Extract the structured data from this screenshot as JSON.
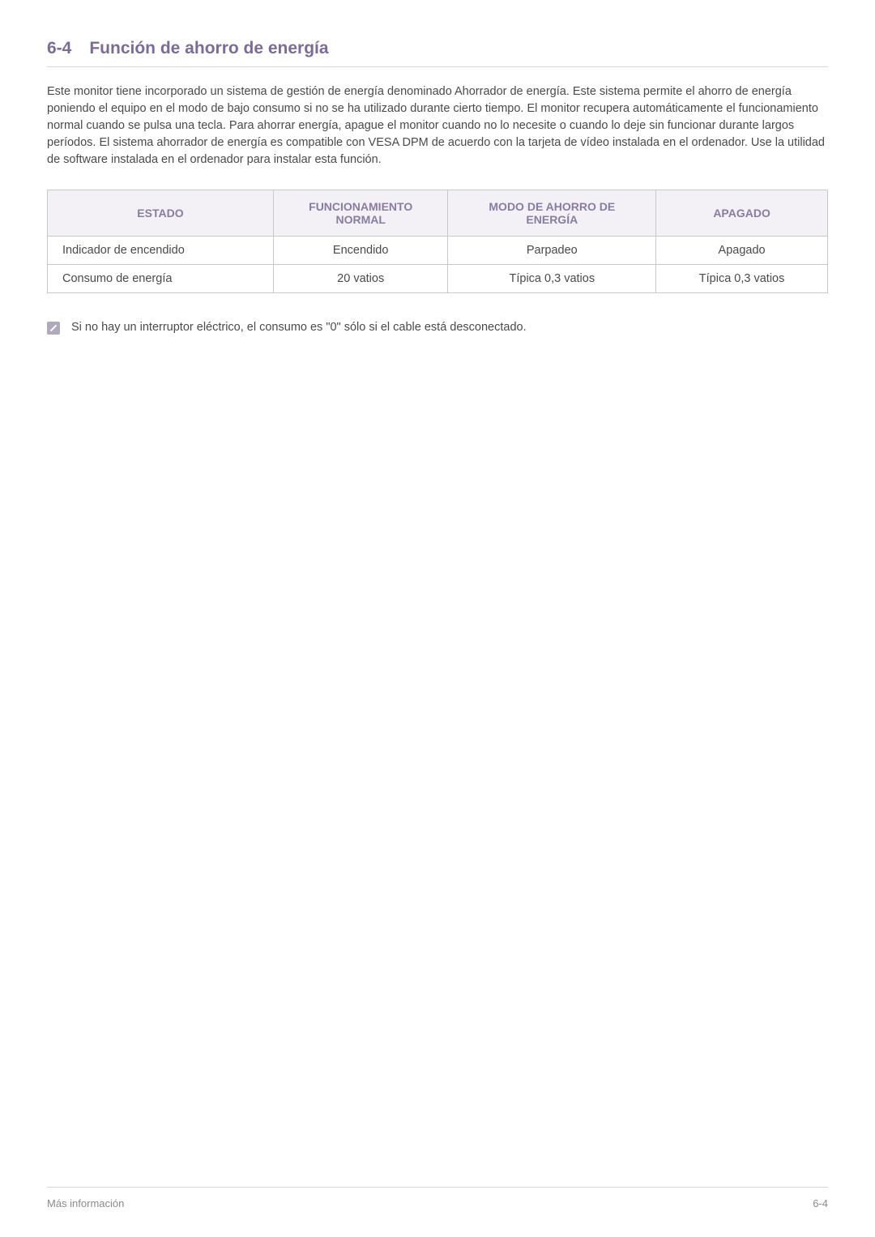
{
  "heading": {
    "number": "6-4",
    "title": "Función de ahorro de energía"
  },
  "paragraph": "Este monitor tiene incorporado un sistema de gestión de energía denominado Ahorrador de energía. Este sistema permite el ahorro de energía poniendo el equipo en el modo de bajo consumo si no se ha utilizado durante cierto tiempo. El monitor recupera automáticamente el funcionamiento normal cuando se pulsa una tecla. Para ahorrar energía, apague el monitor cuando no lo necesite o cuando lo deje sin funcionar durante largos períodos. El sistema ahorrador de energía es compatible con VESA DPM de acuerdo con la tarjeta de vídeo instalada en el ordenador. Use la utilidad de software instalada en el ordenador para instalar esta función.",
  "table": {
    "headers": {
      "c0": "ESTADO",
      "c1_line1": "FUNCIONAMIENTO",
      "c1_line2": "NORMAL",
      "c2_line1": "MODO DE AHORRO DE",
      "c2_line2": "ENERGÍA",
      "c3": "APAGADO"
    },
    "rows": [
      {
        "c0": "Indicador de encendido",
        "c1": "Encendido",
        "c2": "Parpadeo",
        "c3": "Apagado"
      },
      {
        "c0": "Consumo de energía",
        "c1": "20 vatios",
        "c2": "Típica 0,3 vatios",
        "c3": "Típica 0,3 vatios"
      }
    ]
  },
  "note": "Si no hay un interruptor eléctrico, el consumo es \"0\" sólo si el cable está desconectado.",
  "footer": {
    "left": "Más información",
    "right": "6-4"
  },
  "colors": {
    "heading": "#7c6b99",
    "body_text": "#4a4a4a",
    "th_bg": "#f3f1f6",
    "th_text": "#8a7ba3",
    "border": "#c8c8c8",
    "rule": "#d9d4de",
    "footer_text": "#8a8a8a",
    "icon_bg": "#b0a9bb"
  }
}
